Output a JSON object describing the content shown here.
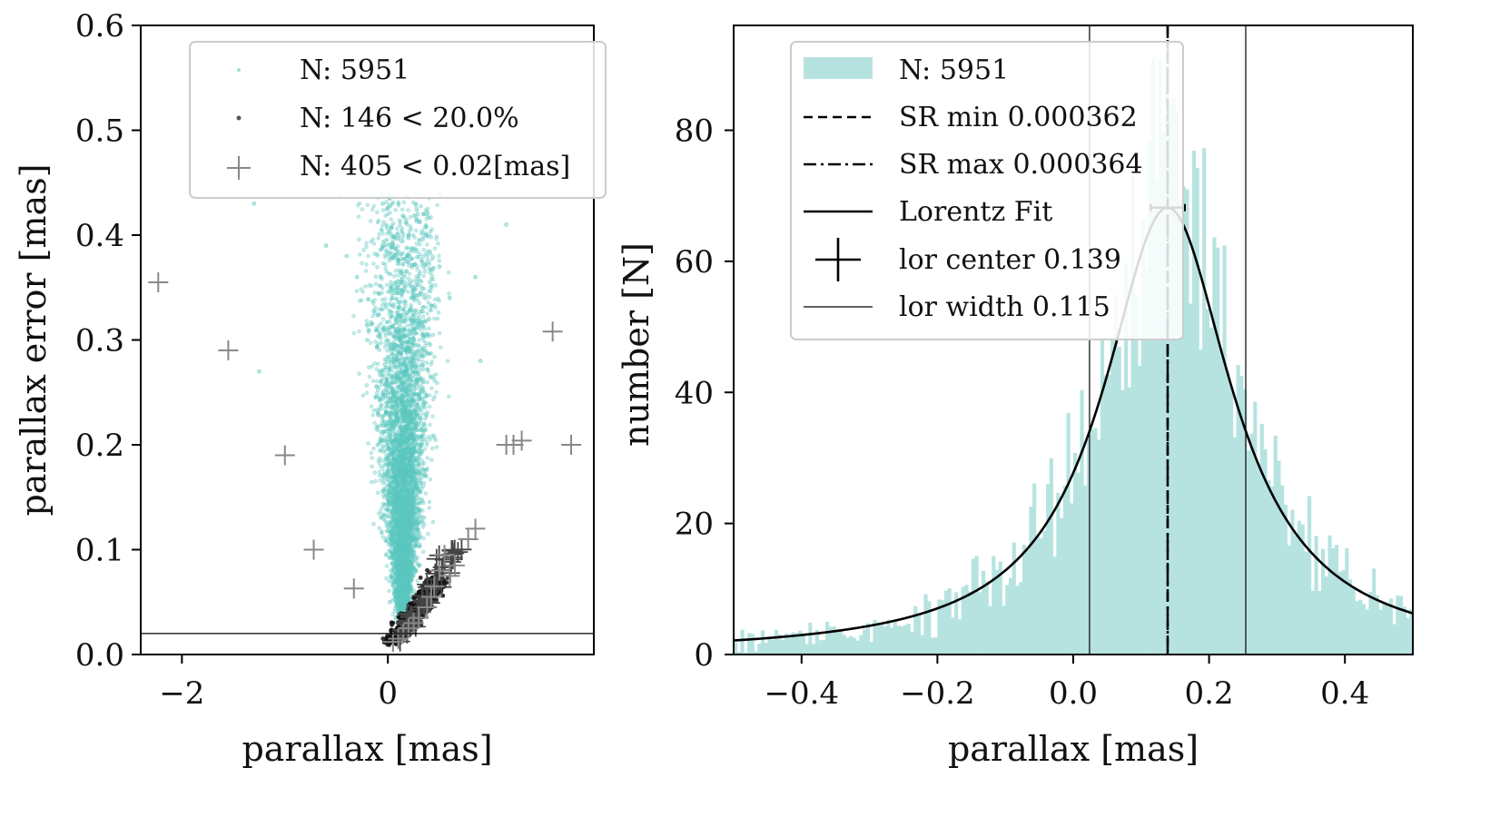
{
  "chart_data": [
    {
      "type": "scatter",
      "xlabel": "parallax [mas]",
      "ylabel": "parallax error [mas]",
      "xlim": [
        -2.4,
        2.0
      ],
      "ylim": [
        0.0,
        0.6
      ],
      "xticks": [
        -2,
        0
      ],
      "xtick_labels": [
        "−2",
        "0"
      ],
      "yticks": [
        0.0,
        0.1,
        0.2,
        0.3,
        0.4,
        0.5,
        0.6
      ],
      "ytick_labels": [
        "0.0",
        "0.1",
        "0.2",
        "0.3",
        "0.4",
        "0.5",
        "0.6"
      ],
      "hline_y": 0.02,
      "legend_position": "top-right",
      "colors": {
        "all": "#5cc8c0",
        "small": "#000000",
        "plus": "#888888"
      },
      "series": [
        {
          "name": "N: 5951",
          "marker": "dot",
          "count": 5951,
          "points_sample": [
            [
              0.02,
              0.05
            ],
            [
              0.1,
              0.08
            ],
            [
              0.15,
              0.12
            ],
            [
              0.05,
              0.15
            ],
            [
              0.2,
              0.18
            ],
            [
              -0.1,
              0.2
            ],
            [
              0.3,
              0.22
            ],
            [
              0.0,
              0.25
            ],
            [
              0.25,
              0.28
            ],
            [
              -0.2,
              0.3
            ],
            [
              0.4,
              0.32
            ],
            [
              0.1,
              0.35
            ],
            [
              -0.3,
              0.36
            ],
            [
              0.5,
              0.37
            ],
            [
              0.2,
              0.4
            ],
            [
              -0.4,
              0.38
            ],
            [
              0.6,
              0.34
            ],
            [
              0.35,
              0.42
            ],
            [
              -0.6,
              0.39
            ],
            [
              0.85,
              0.36
            ],
            [
              -1.3,
              0.43
            ],
            [
              -1.25,
              0.27
            ],
            [
              1.15,
              0.41
            ],
            [
              0.9,
              0.28
            ],
            [
              -0.05,
              0.43
            ]
          ]
        },
        {
          "name": "N: 146 < 20.0%",
          "marker": "dot",
          "count": 146,
          "points_sample": [
            [
              0.1,
              0.012
            ],
            [
              0.15,
              0.02
            ],
            [
              0.2,
              0.025
            ],
            [
              0.25,
              0.035
            ],
            [
              0.3,
              0.045
            ],
            [
              0.08,
              0.01
            ],
            [
              0.35,
              0.055
            ],
            [
              0.4,
              0.065
            ],
            [
              0.18,
              0.03
            ],
            [
              0.22,
              0.04
            ]
          ]
        },
        {
          "name": "N: 405 < 0.02[mas]",
          "marker": "plus",
          "count": 405,
          "points": [
            [
              -2.23,
              0.355
            ],
            [
              -1.55,
              0.29
            ],
            [
              -1.0,
              0.19
            ],
            [
              -0.72,
              0.1
            ],
            [
              -0.33,
              0.063
            ],
            [
              1.15,
              0.2
            ],
            [
              1.22,
              0.2
            ],
            [
              1.3,
              0.204
            ],
            [
              1.78,
              0.2
            ],
            [
              1.6,
              0.308
            ],
            [
              0.85,
              0.12
            ],
            [
              0.78,
              0.11
            ],
            [
              0.55,
              0.095
            ],
            [
              0.65,
              0.085
            ],
            [
              0.5,
              0.08
            ],
            [
              0.6,
              0.075
            ],
            [
              0.45,
              0.065
            ],
            [
              0.42,
              0.055
            ],
            [
              0.38,
              0.045
            ],
            [
              0.3,
              0.035
            ],
            [
              0.25,
              0.03
            ],
            [
              0.2,
              0.025
            ],
            [
              0.15,
              0.02
            ],
            [
              0.1,
              0.015
            ],
            [
              0.05,
              0.012
            ]
          ]
        }
      ]
    },
    {
      "type": "bar",
      "subtype": "histogram",
      "xlabel": "parallax [mas]",
      "ylabel": "number [N]",
      "xlim": [
        -0.5,
        0.5
      ],
      "ylim": [
        0,
        96
      ],
      "xticks": [
        -0.4,
        -0.2,
        0.0,
        0.2,
        0.4
      ],
      "xtick_labels": [
        "−0.4",
        "−0.2",
        "0.0",
        "0.2",
        "0.4"
      ],
      "yticks": [
        0,
        20,
        40,
        60,
        80
      ],
      "ytick_labels": [
        "0",
        "20",
        "40",
        "60",
        "80"
      ],
      "legend_position": "top-left",
      "colors": {
        "hist": "#b6e3e0",
        "line": "#000000"
      },
      "series": [
        {
          "name": "N: 5951",
          "kind": "histogram",
          "count": 5951,
          "bins": 200
        },
        {
          "name": "SR min 0.000362",
          "kind": "vline-dashed",
          "x": 0.139
        },
        {
          "name": "SR max 0.000364",
          "kind": "vline-dashdot",
          "x": 0.139
        },
        {
          "name": "Lorentz Fit",
          "kind": "line",
          "center": 0.139,
          "hwhm": 0.115,
          "amplitude": 68.2
        },
        {
          "name": "lor center 0.139",
          "kind": "errorbar",
          "x": 0.139,
          "y": 68.2,
          "xerr": 0.025
        },
        {
          "name": "lor width 0.115",
          "kind": "vline-thin",
          "x": [
            0.024,
            0.254
          ]
        }
      ]
    }
  ]
}
